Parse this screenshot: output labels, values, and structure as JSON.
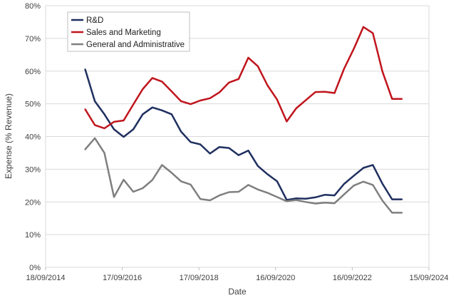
{
  "chart_data": {
    "type": "line",
    "title": "",
    "xlabel": "Date",
    "ylabel": "Expense (% Revenue)",
    "x_ticks": [
      "18/09/2014",
      "17/09/2016",
      "17/09/2018",
      "16/09/2020",
      "16/09/2022",
      "15/09/2024"
    ],
    "x_range": [
      "2014-09-18",
      "2024-09-15"
    ],
    "y_ticks": [
      "0%",
      "10%",
      "20%",
      "30%",
      "40%",
      "50%",
      "60%",
      "70%",
      "80%"
    ],
    "ylim": [
      0,
      80
    ],
    "grid": true,
    "legend_position": "top-left",
    "x": [
      "2015-09-30",
      "2015-12-31",
      "2016-03-31",
      "2016-06-30",
      "2016-09-30",
      "2016-12-31",
      "2017-03-31",
      "2017-06-30",
      "2017-09-30",
      "2017-12-31",
      "2018-03-31",
      "2018-06-30",
      "2018-09-30",
      "2018-12-31",
      "2019-03-31",
      "2019-06-30",
      "2019-09-30",
      "2019-12-31",
      "2020-03-31",
      "2020-06-30",
      "2020-09-30",
      "2020-12-31",
      "2021-03-31",
      "2021-06-30",
      "2021-09-30",
      "2021-12-31",
      "2022-03-31",
      "2022-06-30",
      "2022-09-30",
      "2022-12-31",
      "2023-03-31",
      "2023-06-30",
      "2023-09-30",
      "2023-12-31"
    ],
    "series": [
      {
        "name": "R&D",
        "color": "#1f2f5f",
        "values": [
          60.5,
          50.8,
          46.8,
          42.2,
          39.9,
          42.2,
          46.8,
          48.9,
          48.0,
          46.8,
          41.5,
          38.3,
          37.6,
          34.8,
          36.8,
          36.5,
          34.3,
          35.7,
          31.0,
          28.5,
          26.3,
          20.6,
          21.1,
          21.0,
          21.4,
          22.2,
          22.0,
          25.5,
          28.0,
          30.4,
          31.3,
          25.6,
          20.8,
          20.8
        ]
      },
      {
        "name": "Sales and Marketing",
        "color": "#c0141c",
        "values": [
          48.3,
          43.5,
          42.5,
          44.5,
          44.9,
          49.8,
          54.5,
          57.9,
          56.8,
          53.8,
          50.8,
          49.9,
          51.0,
          51.7,
          53.5,
          56.5,
          57.6,
          64.1,
          61.5,
          55.7,
          51.3,
          44.6,
          48.6,
          51.1,
          53.6,
          53.7,
          53.3,
          60.7,
          66.8,
          73.5,
          71.6,
          59.9,
          51.5,
          51.5
        ]
      },
      {
        "name": "General and Administrative",
        "color": "#7f7f7f",
        "values": [
          36.1,
          39.5,
          35.0,
          21.5,
          26.8,
          23.1,
          24.2,
          26.7,
          31.3,
          28.9,
          26.3,
          25.3,
          20.9,
          20.5,
          22.0,
          23.0,
          23.1,
          25.2,
          23.8,
          22.8,
          21.5,
          20.2,
          20.6,
          20.0,
          19.5,
          19.8,
          19.6,
          22.3,
          25.0,
          26.2,
          25.2,
          20.4,
          16.7,
          16.7
        ]
      }
    ]
  }
}
